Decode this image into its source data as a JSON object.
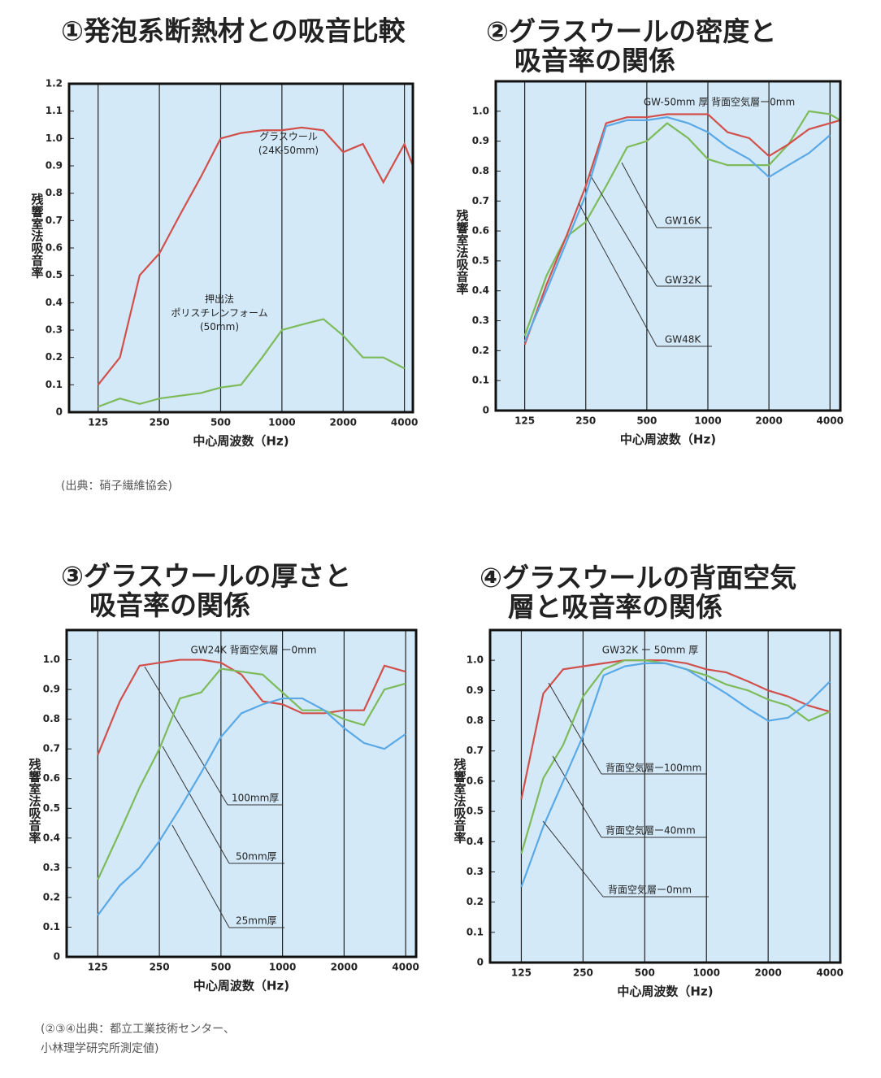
{
  "chart_data": [
    {
      "type": "line",
      "title": "①発泡系断熱材との吸音比較",
      "x_label": "中心周波数（Hz)",
      "y_label": "残響室法吸音率",
      "log_x": true,
      "x": [
        125,
        160,
        200,
        250,
        315,
        400,
        500,
        630,
        800,
        1000,
        1250,
        1600,
        2000,
        2500,
        3150,
        4000,
        4400
      ],
      "xlim": [
        90,
        4400
      ],
      "xticks": [
        125,
        250,
        500,
        1000,
        2000,
        4000
      ],
      "ylim": [
        0,
        1.2
      ],
      "yticks": [
        0,
        0.1,
        0.2,
        0.3,
        0.4,
        0.5,
        0.6,
        0.7,
        0.8,
        0.9,
        {
          "value": 1,
          "label": "1.0"
        },
        1.1,
        1.2
      ],
      "series": [
        {
          "name": "グラスウール\n(24K-50mm)",
          "color": "#d2504b",
          "values": [
            0.1,
            0.2,
            0.5,
            0.58,
            0.72,
            0.86,
            1.0,
            1.02,
            1.03,
            1.03,
            1.04,
            1.03,
            0.95,
            0.98,
            0.84,
            0.98,
            0.9
          ]
        },
        {
          "name": "押出法\nポリスチレンフォーム\n(50mm)",
          "color": "#7dbb5a",
          "values": [
            0.02,
            0.05,
            0.03,
            0.05,
            0.06,
            0.07,
            0.09,
            0.1,
            0.2,
            0.3,
            0.32,
            0.34,
            0.28,
            0.2,
            0.2,
            0.16,
            null
          ]
        }
      ]
    },
    {
      "type": "line",
      "title": "②グラスウールの密度と\n吸音率の関係",
      "note": "GW-50mm 厚 背面空気層ー0mm",
      "x_label": "中心周波数（Hz)",
      "y_label": "残響室法吸音率",
      "log_x": true,
      "x": [
        125,
        160,
        200,
        250,
        315,
        400,
        500,
        630,
        800,
        1000,
        1250,
        1600,
        2000,
        2500,
        3150,
        4000,
        4500
      ],
      "xlim": [
        90,
        4500
      ],
      "xticks": [
        125,
        250,
        500,
        1000,
        2000,
        4000
      ],
      "ylim": [
        0,
        1.1
      ],
      "yticks": [
        0,
        0.1,
        0.2,
        0.3,
        0.4,
        0.5,
        0.6,
        0.7,
        0.8,
        0.9,
        {
          "value": 1,
          "label": "1.0"
        }
      ],
      "series": [
        {
          "name": "GW16K",
          "color": "#7dbb5a",
          "values": [
            0.25,
            0.45,
            0.58,
            0.63,
            0.75,
            0.88,
            0.9,
            0.96,
            0.91,
            0.84,
            0.82,
            0.82,
            0.82,
            0.89,
            1.0,
            0.99,
            0.97
          ]
        },
        {
          "name": "GW32K",
          "color": "#d2504b",
          "values": [
            0.22,
            0.42,
            0.58,
            0.75,
            0.96,
            0.98,
            0.98,
            0.99,
            0.99,
            0.99,
            0.93,
            0.91,
            0.85,
            0.89,
            0.94,
            0.96,
            0.97
          ]
        },
        {
          "name": "GW48K",
          "color": "#5aa9e6",
          "values": [
            0.23,
            0.4,
            0.56,
            0.72,
            0.95,
            0.97,
            0.97,
            0.98,
            0.96,
            0.93,
            0.88,
            0.84,
            0.78,
            0.82,
            0.86,
            0.92,
            null
          ]
        }
      ]
    },
    {
      "type": "line",
      "title": "③グラスウールの厚さと\n吸音率の関係",
      "note": "GW24K 背面空気層 ー0mm",
      "x_label": "中心周波数（Hz)",
      "y_label": "残響室法吸音率",
      "log_x": true,
      "x": [
        125,
        160,
        200,
        250,
        315,
        400,
        500,
        630,
        800,
        1000,
        1250,
        1600,
        2000,
        2500,
        3150,
        4000
      ],
      "xlim": [
        88,
        4500
      ],
      "xticks": [
        125,
        250,
        500,
        1000,
        2000,
        4000
      ],
      "ylim": [
        0,
        1.1
      ],
      "yticks": [
        0,
        0.1,
        0.2,
        0.3,
        0.4,
        0.5,
        0.6,
        0.7,
        0.8,
        0.9,
        {
          "value": 1,
          "label": "1.0"
        }
      ],
      "series": [
        {
          "name": "100mm厚",
          "color": "#d2504b",
          "values": [
            0.68,
            0.86,
            0.98,
            0.99,
            1.0,
            1.0,
            0.99,
            0.95,
            0.86,
            0.85,
            0.82,
            0.82,
            0.83,
            0.83,
            0.98,
            0.96
          ]
        },
        {
          "name": "50mm厚",
          "color": "#7dbb5a",
          "values": [
            0.26,
            0.42,
            0.57,
            0.7,
            0.87,
            0.89,
            0.97,
            0.96,
            0.95,
            0.89,
            0.83,
            0.83,
            0.8,
            0.78,
            0.9,
            0.92
          ]
        },
        {
          "name": "25mm厚",
          "color": "#5aa9e6",
          "values": [
            0.14,
            0.24,
            0.3,
            0.39,
            0.5,
            0.62,
            0.74,
            0.82,
            0.85,
            0.87,
            0.87,
            0.83,
            0.77,
            0.72,
            0.7,
            0.75
          ]
        }
      ]
    },
    {
      "type": "line",
      "title": "④グラスウールの背面空気\n層と吸音率の関係",
      "note": "GW32K ー 50mm 厚",
      "x_label": "中心周波数（Hz)",
      "y_label": "残響室法吸音率",
      "log_x": true,
      "x": [
        125,
        160,
        200,
        250,
        315,
        400,
        500,
        630,
        800,
        1000,
        1250,
        1600,
        2000,
        2500,
        3150,
        4000
      ],
      "xlim": [
        88,
        4500
      ],
      "xticks": [
        125,
        250,
        500,
        1000,
        2000,
        4000
      ],
      "ylim": [
        0,
        1.1
      ],
      "yticks": [
        0,
        0.1,
        0.2,
        0.3,
        0.4,
        0.5,
        0.6,
        0.7,
        0.8,
        0.9,
        {
          "value": 1,
          "label": "1.0"
        }
      ],
      "series": [
        {
          "name": "背面空気層ー100mm",
          "color": "#d2504b",
          "values": [
            0.54,
            0.89,
            0.97,
            0.98,
            0.99,
            1.0,
            1.0,
            1.0,
            0.99,
            0.97,
            0.96,
            0.93,
            0.9,
            0.88,
            0.85,
            0.83
          ]
        },
        {
          "name": "背面空気層ー40mm",
          "color": "#7dbb5a",
          "values": [
            0.36,
            0.61,
            0.72,
            0.88,
            0.97,
            1.0,
            1.0,
            0.99,
            0.97,
            0.95,
            0.92,
            0.9,
            0.87,
            0.85,
            0.8,
            0.83
          ]
        },
        {
          "name": "背面空気層ー0mm",
          "color": "#5aa9e6",
          "values": [
            0.25,
            0.45,
            0.6,
            0.75,
            0.95,
            0.98,
            0.99,
            0.99,
            0.97,
            0.93,
            0.89,
            0.84,
            0.8,
            0.81,
            0.86,
            0.93
          ]
        }
      ]
    }
  ],
  "notes": [
    "(出典：硝子繊維協会)",
    "(②③④出典：都立工業技術センター、\n小林理学研究所測定値)"
  ]
}
